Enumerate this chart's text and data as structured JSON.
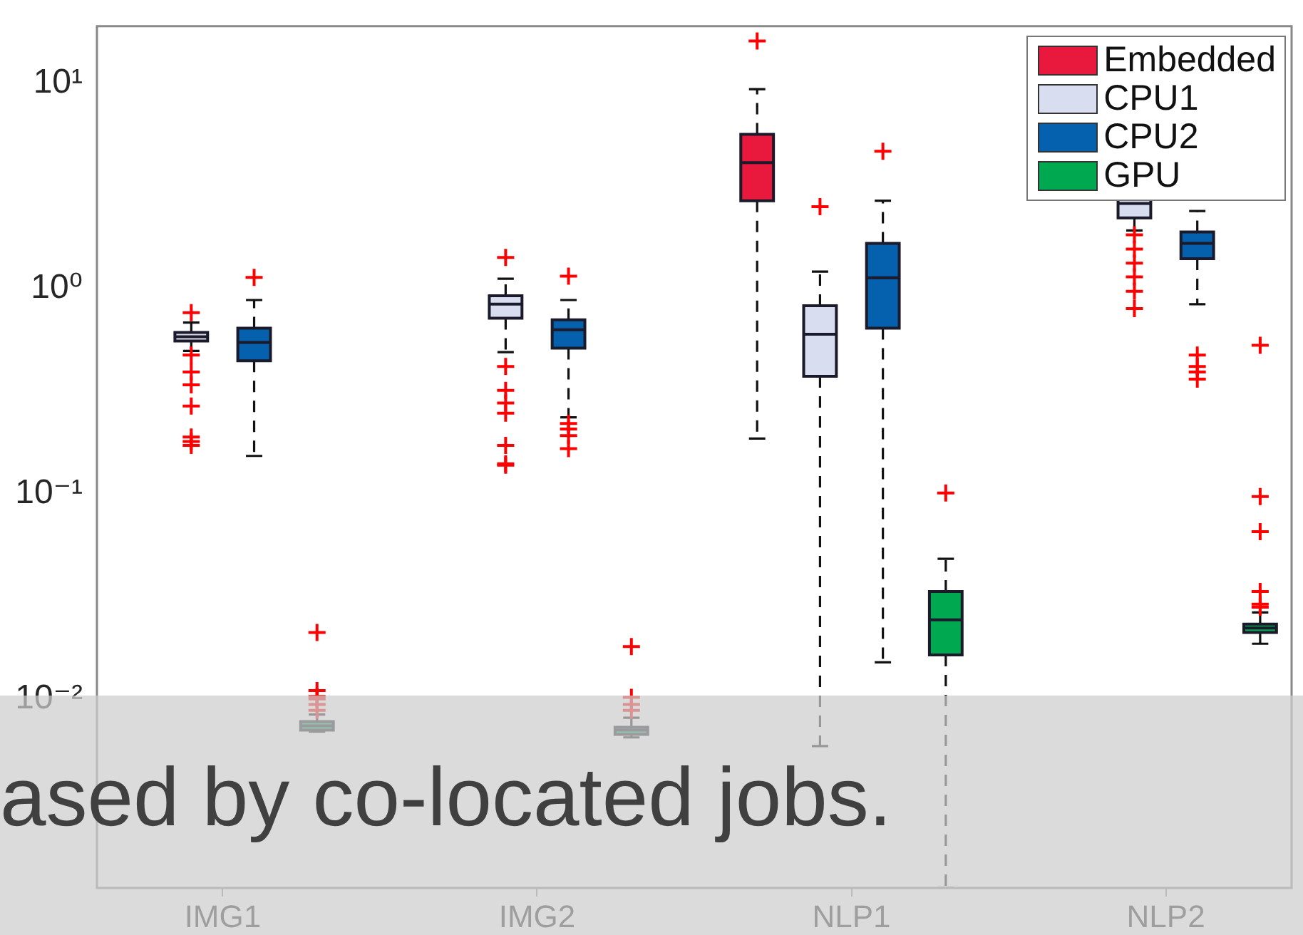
{
  "chart_data": {
    "type": "box",
    "categories": [
      "IMG1",
      "IMG2",
      "NLP1",
      "NLP2"
    ],
    "series": [
      {
        "name": "Embedded",
        "color": "#e8193c",
        "boxes": [
          null,
          null,
          {
            "low": 0.186,
            "q1": 2.68,
            "median": 4.11,
            "q3": 5.65,
            "high": 9.38,
            "outliers": [
              16.1
            ]
          },
          null
        ]
      },
      {
        "name": "CPU1",
        "color": "#d9ddf0",
        "boxes": [
          {
            "low": 0.497,
            "q1": 0.556,
            "median": 0.583,
            "q3": 0.611,
            "high": 0.683,
            "outliers": [
              0.763,
              0.474,
              0.392,
              0.34,
              0.268,
              0.189,
              0.18,
              0.172
            ]
          },
          {
            "low": 0.49,
            "q1": 0.717,
            "median": 0.84,
            "q3": 0.924,
            "high": 1.117,
            "outliers": [
              1.42,
              0.417,
              0.319,
              0.277,
              0.247,
              0.172,
              0.14,
              0.138
            ]
          },
          {
            "low": 0.0059,
            "q1": 0.374,
            "median": 0.6,
            "q3": 0.826,
            "high": 1.21,
            "outliers": [
              2.51
            ]
          },
          {
            "low": 1.92,
            "q1": 2.21,
            "median": 2.6,
            "q3": 3.2,
            "high": 4.5,
            "outliers": [
              1.83,
              1.56,
              1.33,
              1.14,
              0.97,
              0.8
            ]
          }
        ]
      },
      {
        "name": "CPU2",
        "color": "#0561ad",
        "boxes": [
          {
            "low": 0.153,
            "q1": 0.445,
            "median": 0.547,
            "q3": 0.641,
            "high": 0.88,
            "outliers": [
              1.135
            ]
          },
          {
            "low": 0.236,
            "q1": 0.513,
            "median": 0.63,
            "q3": 0.705,
            "high": 0.88,
            "outliers": [
              1.15,
              0.22,
              0.207,
              0.192,
              0.166
            ]
          },
          {
            "low": 0.0151,
            "q1": 0.641,
            "median": 1.13,
            "q3": 1.66,
            "high": 2.68,
            "outliers": [
              4.67
            ]
          },
          {
            "low": 0.84,
            "q1": 1.4,
            "median": 1.66,
            "q3": 1.89,
            "high": 2.39,
            "outliers": [
              0.474,
              0.417,
              0.392,
              0.362
            ]
          }
        ]
      },
      {
        "name": "GPU",
        "color": "#00a84f",
        "boxes": [
          {
            "low": 0.00694,
            "q1": 0.00705,
            "median": 0.0074,
            "q3": 0.00776,
            "high": 0.0084,
            "outliers": [
              0.0211,
              0.011,
              0.0103,
              0.01,
              0.0094,
              0.0088
            ]
          },
          {
            "low": 0.0065,
            "q1": 0.00673,
            "median": 0.00705,
            "q3": 0.00728,
            "high": 0.0081,
            "outliers": [
              0.018,
              0.0102,
              0.0094,
              0.0088
            ]
          },
          {
            "low": 0.0012,
            "q1": 0.0164,
            "median": 0.0243,
            "q3": 0.0334,
            "high": 0.0482,
            "outliers": [
              0.101
            ]
          },
          {
            "low": 0.0186,
            "q1": 0.0211,
            "median": 0.0222,
            "q3": 0.0232,
            "high": 0.0264,
            "outliers": [
              0.53,
              0.0969,
              0.0654,
              0.0334,
              0.029,
              0.028
            ]
          }
        ]
      }
    ],
    "log": true,
    "ylim": [
      0.0012,
      19
    ],
    "yticks": [
      {
        "value": 0.01,
        "label": "10⁻²"
      },
      {
        "value": 0.1,
        "label": "10⁻¹"
      },
      {
        "value": 1,
        "label": "10⁰"
      },
      {
        "value": 10,
        "label": "10¹"
      }
    ],
    "legend": "top right",
    "annotations": [
      "ased by co-located jobs."
    ]
  }
}
